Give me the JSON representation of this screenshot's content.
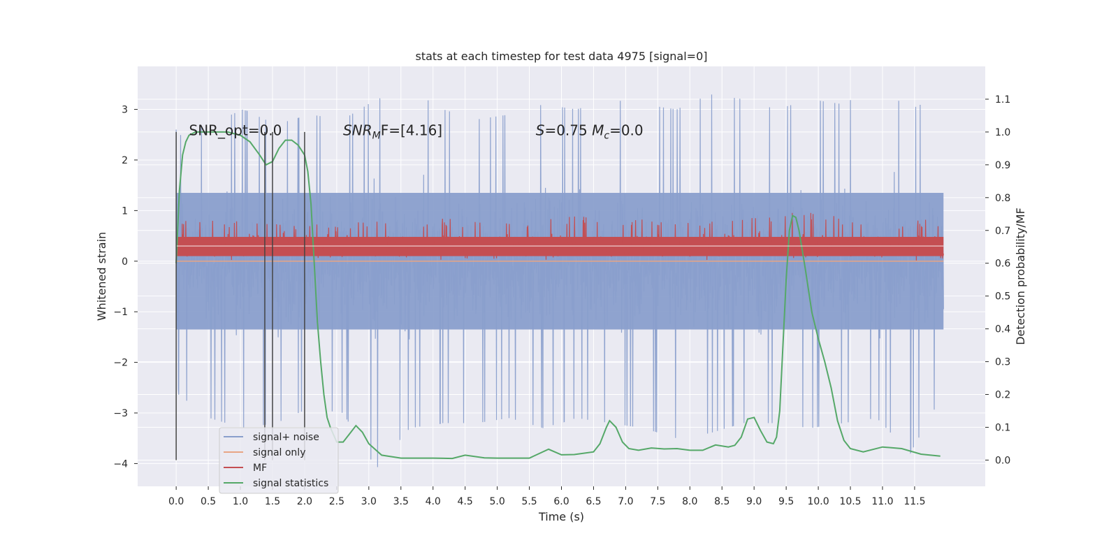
{
  "chart_data": {
    "type": "line",
    "title": "stats at each timestep for test data 4975 [signal=0]",
    "xlabel": "Time (s)",
    "ylabel": "Whitened strain",
    "y2label": "Detection probability/MF",
    "xlim": [
      -0.6,
      12.6
    ],
    "ylim": [
      -4.45,
      3.85
    ],
    "y2lim": [
      -0.08,
      1.2
    ],
    "x_ticks": [
      0.0,
      0.5,
      1.0,
      1.5,
      2.0,
      2.5,
      3.0,
      3.5,
      4.0,
      4.5,
      5.0,
      5.5,
      6.0,
      6.5,
      7.0,
      7.5,
      8.0,
      8.5,
      9.0,
      9.5,
      10.0,
      10.5,
      11.0,
      11.5
    ],
    "x_tick_labels": [
      "0.0",
      "0.5",
      "1.0",
      "1.5",
      "2.0",
      "2.5",
      "3.0",
      "3.5",
      "4.0",
      "4.5",
      "5.0",
      "5.5",
      "6.0",
      "6.5",
      "7.0",
      "7.5",
      "8.0",
      "8.5",
      "9.0",
      "9.5",
      "10.0",
      "10.5",
      "11.0",
      "11.5"
    ],
    "y_ticks": [
      -4,
      -3,
      -2,
      -1,
      0,
      1,
      2,
      3
    ],
    "y_tick_labels": [
      "−4",
      "−3",
      "−2",
      "−1",
      "0",
      "1",
      "2",
      "3"
    ],
    "y2_ticks": [
      0.0,
      0.1,
      0.2,
      0.3,
      0.4,
      0.5,
      0.6,
      0.7,
      0.8,
      0.9,
      1.0,
      1.1
    ],
    "y2_tick_labels": [
      "0.0",
      "0.1",
      "0.2",
      "0.3",
      "0.4",
      "0.5",
      "0.6",
      "0.7",
      "0.8",
      "0.9",
      "1.0",
      "1.1"
    ],
    "grid": true,
    "legend_position": "lower-left",
    "series": [
      {
        "name": "signal+ noise",
        "axis": "left",
        "color": "#8a9fcc",
        "kind": "dense-noise",
        "x_range": [
          0.0,
          11.95
        ],
        "upper_envelope": [
          2.6,
          2.7,
          3.0,
          2.7,
          2.9,
          2.8,
          3.2,
          3.4,
          3.0,
          2.8,
          2.9,
          3.1,
          3.0,
          3.2,
          3.1,
          3.0,
          3.3,
          3.2,
          3.0,
          3.2,
          3.1,
          3.5,
          3.0,
          3.3
        ],
        "lower_envelope": [
          -2.6,
          -3.1,
          -3.3,
          -3.2,
          -2.9,
          -3.0,
          -4.1,
          -3.3,
          -3.2,
          -3.2,
          -3.1,
          -3.3,
          -3.1,
          -3.2,
          -3.3,
          -3.5,
          -3.4,
          -3.2,
          -3.2,
          -3.3,
          -3.2,
          -3.1,
          -3.8,
          -2.6
        ]
      },
      {
        "name": "signal only",
        "axis": "left",
        "color": "#e8a584",
        "kind": "line",
        "x": [
          0.0,
          11.95
        ],
        "y": [
          0.0,
          0.0
        ]
      },
      {
        "name": "MF",
        "axis": "left",
        "color": "#c44e52",
        "kind": "dense-noise",
        "x_range": [
          0.0,
          11.95
        ],
        "baseline": 0.3,
        "upper_envelope": [
          0.85,
          0.85,
          0.8,
          0.75,
          0.75,
          0.7,
          0.85,
          0.85,
          0.85,
          0.8,
          0.75,
          0.8,
          0.95,
          0.85,
          0.85,
          0.8,
          0.8,
          0.85,
          0.95,
          1.0,
          0.85,
          0.8,
          0.8,
          0.85
        ],
        "lower_envelope": [
          0.0,
          0.02,
          0.0,
          0.0,
          0.02,
          0.03,
          0.0,
          0.02,
          0.03,
          0.01,
          0.02,
          0.03,
          0.02,
          0.0,
          0.03,
          0.02,
          0.01,
          0.0,
          0.02,
          0.03,
          0.02,
          0.0,
          0.01,
          0.02
        ]
      },
      {
        "name": "signal statistics",
        "axis": "right",
        "color": "#55a868",
        "kind": "line",
        "x": [
          0.0,
          0.05,
          0.1,
          0.15,
          0.2,
          0.3,
          0.5,
          0.8,
          1.0,
          1.15,
          1.3,
          1.4,
          1.5,
          1.6,
          1.7,
          1.8,
          1.9,
          2.0,
          2.05,
          2.1,
          2.15,
          2.2,
          2.25,
          2.3,
          2.35,
          2.4,
          2.5,
          2.6,
          2.7,
          2.8,
          2.9,
          3.0,
          3.2,
          3.5,
          4.0,
          4.3,
          4.5,
          4.8,
          5.0,
          5.5,
          5.8,
          6.0,
          6.2,
          6.5,
          6.6,
          6.7,
          6.75,
          6.85,
          6.95,
          7.05,
          7.2,
          7.4,
          7.6,
          7.8,
          8.0,
          8.2,
          8.4,
          8.6,
          8.7,
          8.8,
          8.9,
          9.0,
          9.1,
          9.2,
          9.3,
          9.35,
          9.4,
          9.45,
          9.5,
          9.55,
          9.6,
          9.65,
          9.7,
          9.8,
          9.9,
          10.0,
          10.1,
          10.2,
          10.3,
          10.4,
          10.5,
          10.7,
          11.0,
          11.3,
          11.6,
          11.9
        ],
        "y": [
          0.6,
          0.82,
          0.93,
          0.97,
          0.99,
          1.0,
          1.0,
          1.0,
          0.99,
          0.97,
          0.93,
          0.9,
          0.91,
          0.95,
          0.975,
          0.975,
          0.96,
          0.93,
          0.88,
          0.78,
          0.6,
          0.42,
          0.3,
          0.2,
          0.13,
          0.1,
          0.055,
          0.055,
          0.08,
          0.105,
          0.085,
          0.05,
          0.015,
          0.006,
          0.006,
          0.005,
          0.015,
          0.007,
          0.006,
          0.006,
          0.033,
          0.016,
          0.017,
          0.025,
          0.05,
          0.1,
          0.12,
          0.1,
          0.055,
          0.035,
          0.03,
          0.037,
          0.034,
          0.035,
          0.03,
          0.03,
          0.046,
          0.04,
          0.045,
          0.07,
          0.125,
          0.13,
          0.09,
          0.055,
          0.05,
          0.07,
          0.15,
          0.35,
          0.55,
          0.7,
          0.745,
          0.74,
          0.7,
          0.58,
          0.45,
          0.37,
          0.3,
          0.22,
          0.12,
          0.06,
          0.035,
          0.025,
          0.04,
          0.035,
          0.018,
          0.012
        ]
      }
    ],
    "vertical_markers": [
      0.0,
      1.38,
      1.5,
      2.0
    ],
    "annotations": [
      {
        "id": "snr-opt",
        "x": 0.2,
        "text": "SNR_opt=0.0"
      },
      {
        "id": "snr-mf",
        "x": 2.6,
        "pre": "SNR",
        "sub": "M",
        "post": "F=[4.16]"
      },
      {
        "id": "s-mc",
        "x": 5.6,
        "text1_italic": "S",
        "text1": "=0.75   ",
        "text2_italic": "M",
        "sub": "c",
        "text2": "=0.0"
      }
    ]
  }
}
